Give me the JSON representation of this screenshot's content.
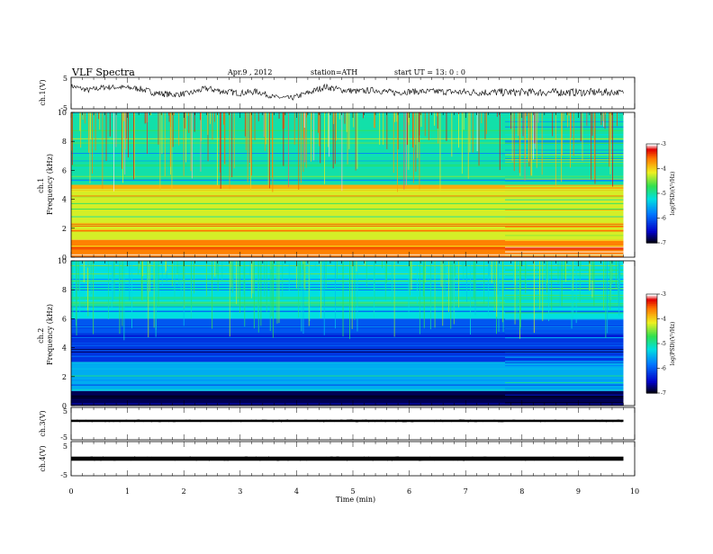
{
  "header": {
    "title": "VLF  Spectra",
    "date": "Apr.9  , 2012",
    "station": "station=ATH",
    "start_ut": "start  UT  =    13: 0  : 0"
  },
  "chart_data": [
    {
      "type": "line",
      "name": "ch1-waveform",
      "ylabel": "ch.1(V)",
      "ylim": [
        -5,
        5
      ],
      "yticks": [
        "5",
        "-5"
      ],
      "x_unit": "min",
      "xlim": [
        0,
        10
      ],
      "data_end_min": 9.8,
      "envelope": [
        [
          0.0,
          1.5,
          3.0
        ],
        [
          0.3,
          0.0,
          1.8
        ],
        [
          0.6,
          1.0,
          2.8
        ],
        [
          0.9,
          1.0,
          2.6
        ],
        [
          1.2,
          0.5,
          2.4
        ],
        [
          1.5,
          -1.0,
          1.0
        ],
        [
          1.8,
          -1.5,
          0.5
        ],
        [
          2.1,
          -1.0,
          0.8
        ],
        [
          2.4,
          0.5,
          2.5
        ],
        [
          2.7,
          -0.5,
          1.5
        ],
        [
          3.0,
          -1.0,
          1.0
        ],
        [
          3.3,
          -0.5,
          1.5
        ],
        [
          3.6,
          -2.0,
          -0.5
        ],
        [
          3.9,
          -2.5,
          -0.8
        ],
        [
          4.2,
          -1.0,
          1.0
        ],
        [
          4.5,
          1.0,
          3.0
        ],
        [
          4.8,
          0.0,
          2.0
        ],
        [
          5.1,
          -0.5,
          1.5
        ],
        [
          5.4,
          0.0,
          2.0
        ],
        [
          5.7,
          -1.0,
          1.2
        ],
        [
          6.0,
          -0.5,
          1.5
        ],
        [
          6.5,
          -0.5,
          1.5
        ],
        [
          7.0,
          -1.0,
          1.5
        ],
        [
          7.5,
          -1.0,
          1.5
        ],
        [
          8.0,
          -1.0,
          1.5
        ],
        [
          8.5,
          -1.0,
          1.5
        ],
        [
          9.0,
          -1.0,
          1.5
        ],
        [
          9.5,
          -1.0,
          1.5
        ],
        [
          9.8,
          -0.5,
          1.0
        ]
      ]
    },
    {
      "type": "heatmap",
      "name": "ch1-spectrogram",
      "ylabel": "ch.1\nFrequency (kHz)",
      "ylim": [
        0,
        10
      ],
      "yticks": [
        "10",
        "8",
        "6",
        "4",
        "2",
        "0"
      ],
      "x_unit": "min",
      "xlim": [
        0,
        10
      ],
      "data_end_min": 9.8,
      "colorbar": {
        "label": "log(PSD)(V²/Hz)",
        "range": [
          -7,
          -3
        ],
        "ticks": [
          "-3",
          "-4",
          "-5",
          "-6",
          "-7"
        ]
      },
      "bands_khz": [
        {
          "from": 5.0,
          "to": 10.0,
          "log_psd": -5.0,
          "note": "green/yellow with vertical red spikes"
        },
        {
          "from": 4.7,
          "to": 5.0,
          "log_psd": -3.8
        },
        {
          "from": 1.2,
          "to": 4.7,
          "log_psd": -4.2
        },
        {
          "from": 0.0,
          "to": 1.2,
          "log_psd": -3.6
        }
      ],
      "transition_min": 7.7
    },
    {
      "type": "heatmap",
      "name": "ch2-spectrogram",
      "ylabel": "ch.2\nFrequency (kHz)",
      "ylim": [
        0,
        10
      ],
      "yticks": [
        "10",
        "8",
        "6",
        "4",
        "2",
        "0"
      ],
      "x_unit": "min",
      "xlim": [
        0,
        10
      ],
      "data_end_min": 9.8,
      "colorbar": {
        "label": "log(PSD)(V²/Hz)",
        "range": [
          -7,
          -3
        ],
        "ticks": [
          "-3",
          "-4",
          "-5",
          "-6",
          "-7"
        ]
      },
      "bands_khz": [
        {
          "from": 6.0,
          "to": 10.0,
          "log_psd": -5.2
        },
        {
          "from": 5.0,
          "to": 6.0,
          "log_psd": -6.0
        },
        {
          "from": 3.0,
          "to": 5.0,
          "log_psd": -6.2
        },
        {
          "from": 1.0,
          "to": 3.0,
          "log_psd": -5.5
        },
        {
          "from": 0.0,
          "to": 1.0,
          "log_psd": -6.8
        }
      ],
      "transition_min": 7.7
    },
    {
      "type": "line",
      "name": "ch3-waveform",
      "ylabel": "ch.3(V)",
      "ylim": [
        -5,
        5
      ],
      "yticks": [
        "5",
        "-5"
      ],
      "flat_level": [
        0.5,
        1.2
      ],
      "x_unit": "min",
      "xlim": [
        0,
        10
      ],
      "data_end_min": 9.8
    },
    {
      "type": "line",
      "name": "ch4-waveform",
      "ylabel": "ch.4(V)",
      "ylim": [
        -5,
        5
      ],
      "yticks": [
        "5",
        "-5"
      ],
      "flat_level": [
        -0.6,
        0.6
      ],
      "x_unit": "min",
      "xlim": [
        0,
        10
      ],
      "xlabel": "Time  (min)",
      "xticks": [
        "0",
        "1",
        "2",
        "3",
        "4",
        "5",
        "6",
        "7",
        "8",
        "9",
        "10"
      ],
      "data_end_min": 9.8
    }
  ]
}
